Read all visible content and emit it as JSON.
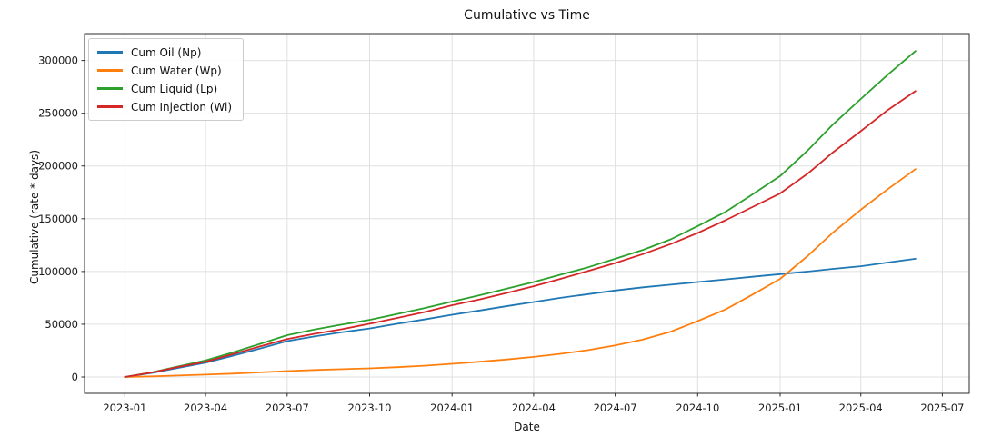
{
  "chart_data": {
    "type": "line",
    "title": "Cumulative vs Time",
    "xlabel": "Date",
    "ylabel": "Cumulative (rate * days)",
    "grid": true,
    "legend_position": "upper-left",
    "x": [
      "2023-01-01",
      "2023-02-01",
      "2023-03-01",
      "2023-04-01",
      "2023-05-01",
      "2023-06-01",
      "2023-07-01",
      "2023-08-01",
      "2023-09-01",
      "2023-10-01",
      "2023-11-01",
      "2023-12-01",
      "2024-01-01",
      "2024-02-01",
      "2024-03-01",
      "2024-04-01",
      "2024-05-01",
      "2024-06-01",
      "2024-07-01",
      "2024-08-01",
      "2024-09-01",
      "2024-10-01",
      "2024-11-01",
      "2024-12-01",
      "2025-01-01",
      "2025-02-01",
      "2025-03-01",
      "2025-04-01",
      "2025-05-01",
      "2025-06-01"
    ],
    "series": [
      {
        "name": "Cum Oil (Np)",
        "color": "#1f77b4",
        "values": [
          0,
          4000,
          8500,
          13500,
          20000,
          27000,
          34000,
          38500,
          42500,
          46000,
          50500,
          54500,
          59000,
          63000,
          67000,
          71000,
          75000,
          78500,
          82000,
          85000,
          87500,
          90000,
          92500,
          95000,
          97500,
          100000,
          102500,
          105000,
          108500,
          112000
        ]
      },
      {
        "name": "Cum Water (Wp)",
        "color": "#ff7f0e",
        "values": [
          0,
          600,
          1400,
          2200,
          3200,
          4400,
          5600,
          6600,
          7400,
          8200,
          9300,
          10700,
          12500,
          14500,
          16500,
          19000,
          22000,
          25500,
          30000,
          35500,
          43000,
          53000,
          64000,
          78000,
          93000,
          115000,
          137000,
          158500,
          178000,
          197000
        ]
      },
      {
        "name": "Cum Liquid (Lp)",
        "color": "#2ca02c",
        "values": [
          0,
          4600,
          9900,
          15700,
          23200,
          31400,
          39600,
          45100,
          49900,
          54200,
          59800,
          65200,
          71500,
          77500,
          83500,
          90000,
          97000,
          104000,
          112000,
          120500,
          130500,
          143000,
          156500,
          173000,
          190500,
          215000,
          239500,
          263500,
          286500,
          309000
        ]
      },
      {
        "name": "Cum Injection (Wi)",
        "color": "#d62728",
        "values": [
          0,
          4400,
          9400,
          14500,
          21500,
          29000,
          36000,
          41000,
          45500,
          50500,
          56000,
          61500,
          68000,
          73500,
          79500,
          86000,
          93000,
          100500,
          108000,
          116500,
          126000,
          136500,
          148500,
          161000,
          174000,
          193000,
          213000,
          233000,
          253000,
          271000
        ]
      }
    ],
    "xticks": [
      "2023-01",
      "2023-04",
      "2023-07",
      "2023-10",
      "2024-01",
      "2024-04",
      "2024-07",
      "2024-10",
      "2025-01",
      "2025-04",
      "2025-07"
    ],
    "yticks": [
      0,
      50000,
      100000,
      150000,
      200000,
      250000,
      300000
    ],
    "ylim": [
      -15500,
      325500
    ],
    "xlim": [
      "2022-11-17",
      "2025-07-31"
    ],
    "colors": {
      "grid": "#e0e0e0",
      "spine": "#2b2b2b",
      "tick_label": "#1a1a1a"
    }
  }
}
